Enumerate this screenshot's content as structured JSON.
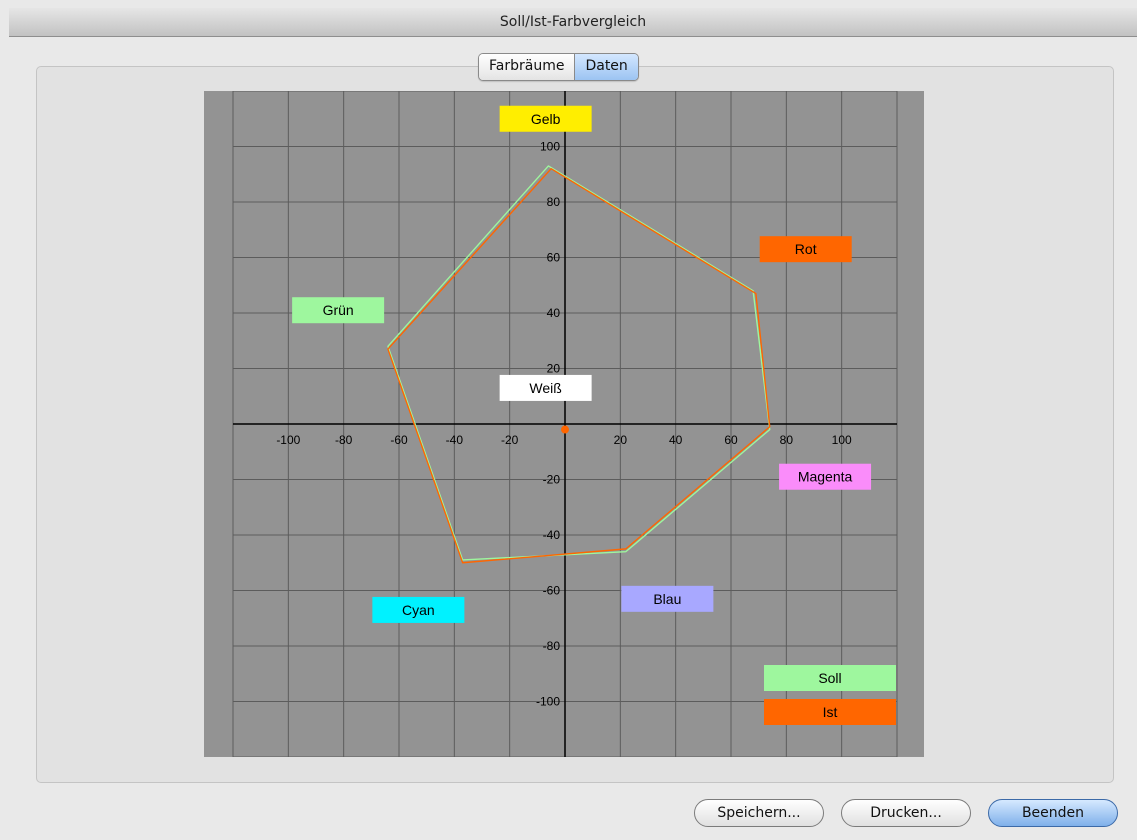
{
  "window": {
    "title": "Soll/Ist-Farbvergleich"
  },
  "tabs": [
    {
      "label": "Farbräume",
      "active": false
    },
    {
      "label": "Daten",
      "active": true
    }
  ],
  "chart_data": {
    "type": "line",
    "xlim": [
      -120,
      120
    ],
    "ylim": [
      -120,
      120
    ],
    "x_ticks": [
      -100,
      -80,
      -60,
      -40,
      -20,
      20,
      40,
      60,
      80,
      100
    ],
    "y_ticks": [
      100,
      80,
      60,
      40,
      20,
      -20,
      -40,
      -60,
      -80,
      -100
    ],
    "grid": true,
    "colors": {
      "plot_bg": "#939393",
      "grid": "#5c5c5c"
    },
    "series": [
      {
        "name": "Soll",
        "color": "#9ef79e",
        "points": [
          [
            -6,
            93
          ],
          [
            68,
            48
          ],
          [
            74,
            -2
          ],
          [
            22,
            -46
          ],
          [
            -37,
            -49
          ],
          [
            -64,
            28
          ]
        ]
      },
      {
        "name": "Ist",
        "color": "#ff6600",
        "points": [
          [
            -5,
            92
          ],
          [
            69,
            47
          ],
          [
            74,
            -1
          ],
          [
            22,
            -45
          ],
          [
            -37,
            -50
          ],
          [
            -64,
            27
          ]
        ]
      }
    ],
    "center_point": {
      "x": 0,
      "y": -2,
      "color": "#ff6600"
    },
    "color_labels": [
      {
        "text": "Gelb",
        "color": "#ffee00",
        "x": -7,
        "y": 110
      },
      {
        "text": "Rot",
        "color": "#ff6600",
        "x": 87,
        "y": 63
      },
      {
        "text": "Grün",
        "color": "#9ef79e",
        "x": -82,
        "y": 41
      },
      {
        "text": "Weiß",
        "color": "#ffffff",
        "x": -7,
        "y": 13
      },
      {
        "text": "Magenta",
        "color": "#fa8cfa",
        "x": 94,
        "y": -19
      },
      {
        "text": "Blau",
        "color": "#a8a8ff",
        "x": 37,
        "y": -63
      },
      {
        "text": "Cyan",
        "color": "#00f2ff",
        "x": -53,
        "y": -67
      }
    ],
    "legend": {
      "position": "bottom-right",
      "items": [
        {
          "text": "Soll",
          "color": "#9ef79e"
        },
        {
          "text": "Ist",
          "color": "#ff6600"
        }
      ]
    }
  },
  "buttons": {
    "save": "Speichern...",
    "print": "Drucken...",
    "quit": "Beenden"
  }
}
